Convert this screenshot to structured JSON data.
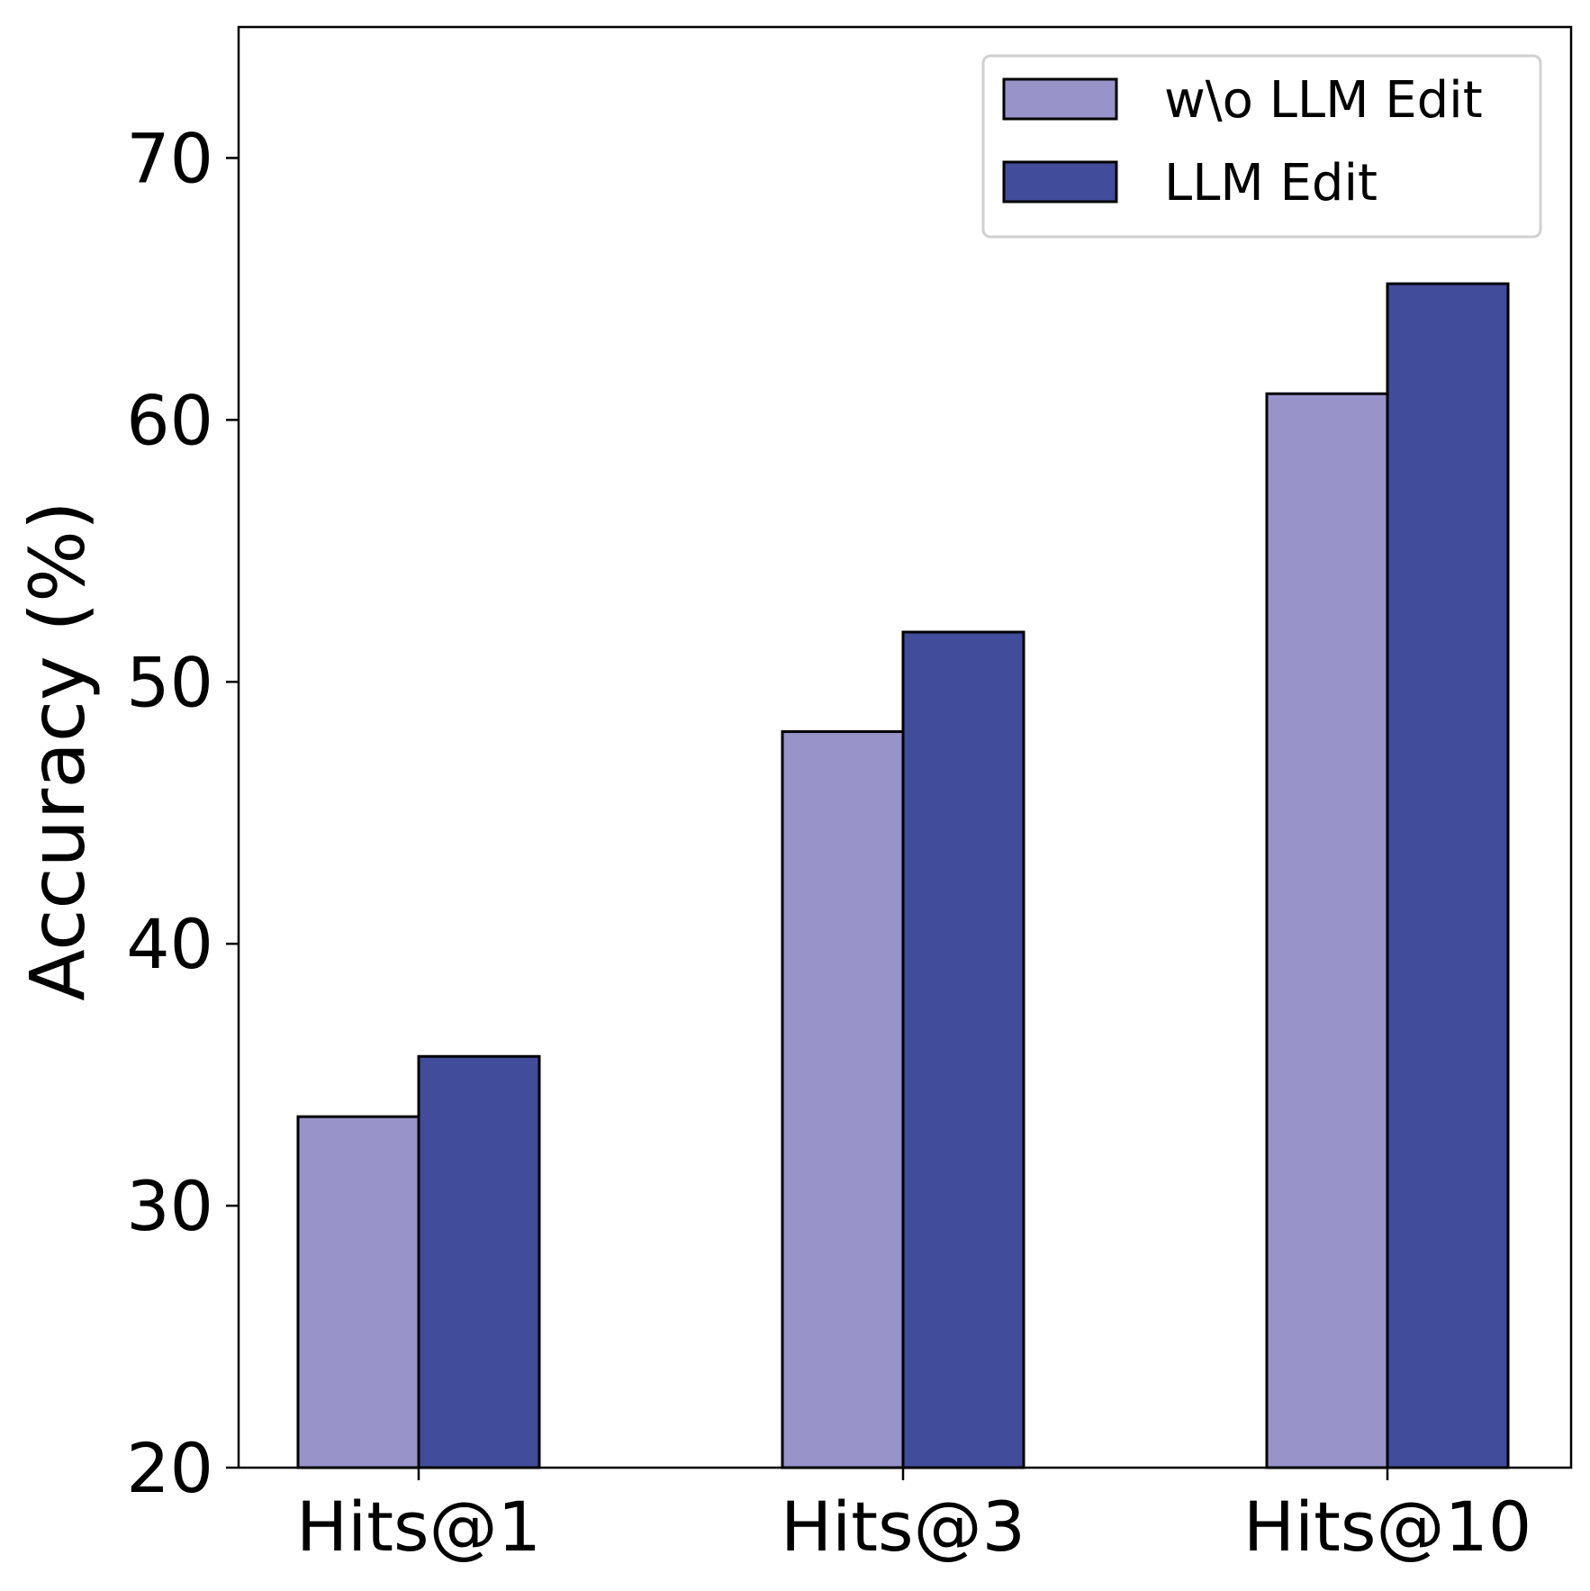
{
  "chart_data": {
    "type": "bar",
    "categories": [
      "Hits@1",
      "Hits@3",
      "Hits@10"
    ],
    "series": [
      {
        "name": "w\\o LLM Edit",
        "values": [
          33.4,
          48.1,
          61.0
        ],
        "color": "#9893C9"
      },
      {
        "name": "LLM Edit",
        "values": [
          35.7,
          51.9,
          65.2
        ],
        "color": "#414C9B"
      }
    ],
    "xlabel": "",
    "ylabel": "Accuracy (%)",
    "ylim": [
      20,
      75
    ],
    "yticks": [
      20,
      30,
      40,
      50,
      60,
      70
    ],
    "legend_position": "top-right",
    "grid": false
  }
}
